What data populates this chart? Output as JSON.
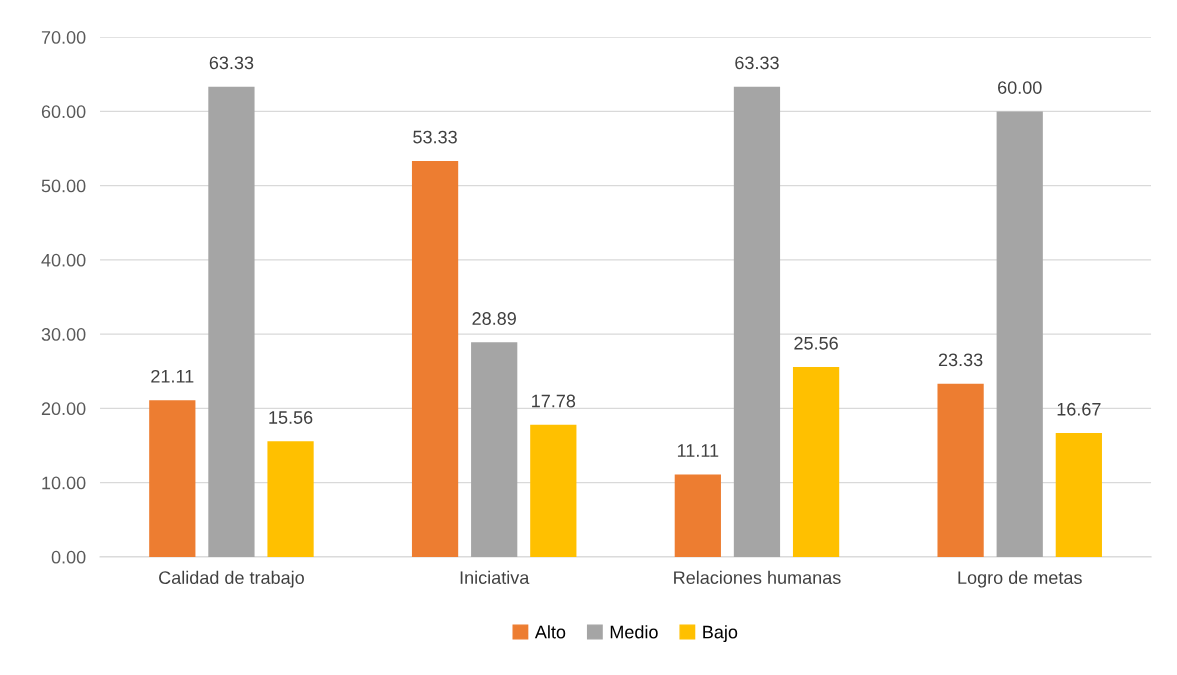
{
  "chart_data": {
    "type": "bar",
    "categories": [
      "Calidad de trabajo",
      "Iniciativa",
      "Relaciones humanas",
      "Logro de metas"
    ],
    "series": [
      {
        "name": "Alto",
        "color": "#ed7d31",
        "values": [
          21.11,
          53.33,
          11.11,
          23.33
        ],
        "value_labels": [
          "21.11",
          "53.33",
          "11.11",
          "23.33"
        ]
      },
      {
        "name": "Medio",
        "color": "#a5a5a5",
        "values": [
          63.33,
          28.89,
          63.33,
          60.0
        ],
        "value_labels": [
          "63.33",
          "28.89",
          "63.33",
          "60.00"
        ]
      },
      {
        "name": "Bajo",
        "color": "#ffc000",
        "values": [
          15.56,
          17.78,
          25.56,
          16.67
        ],
        "value_labels": [
          "15.56",
          "17.78",
          "25.56",
          "16.67"
        ]
      }
    ],
    "ylim": [
      0,
      70
    ],
    "yticks": [
      {
        "value": 0,
        "label": "0.00"
      },
      {
        "value": 10,
        "label": "10.00"
      },
      {
        "value": 20,
        "label": "20.00"
      },
      {
        "value": 30,
        "label": "30.00"
      },
      {
        "value": 40,
        "label": "40.00"
      },
      {
        "value": 50,
        "label": "50.00"
      },
      {
        "value": 60,
        "label": "60.00"
      },
      {
        "value": 70,
        "label": "70.00"
      }
    ],
    "grid": "y",
    "legend": "bottom"
  }
}
